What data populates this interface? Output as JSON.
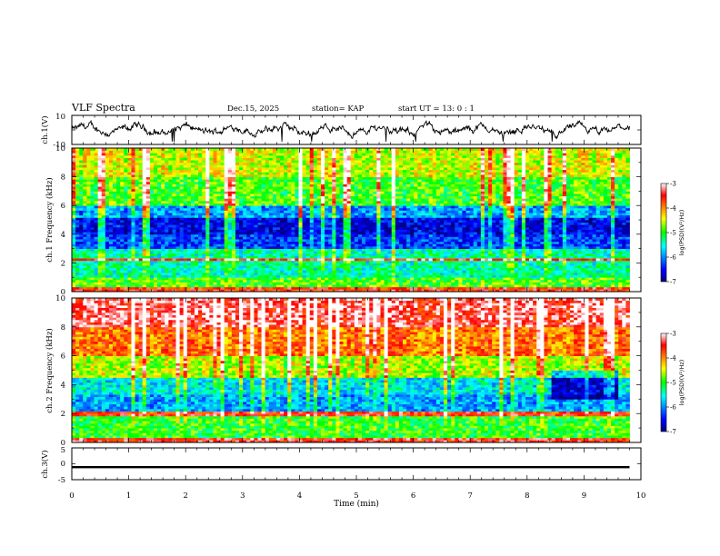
{
  "header": {
    "title": "VLF Spectra",
    "date": "Dec.15, 2025",
    "station": "station= KAP",
    "start_ut": "start  UT =   13: 0  : 1"
  },
  "chart_data": [
    {
      "type": "line",
      "name": "ch1-waveform",
      "ylabel": "ch.1(V)",
      "ylim": [
        -10,
        10
      ],
      "y_tick_labels": [
        "10",
        "-10"
      ],
      "xlim": [
        0,
        10
      ],
      "data_range_x": [
        0,
        9.8
      ],
      "trace_summary": "noisy trace fluctuating roughly between -5 and +5 V",
      "color": "#000000"
    },
    {
      "type": "heatmap",
      "name": "ch1-spectrogram",
      "ylabel": "ch.1 Frequency (kHz)",
      "ylim": [
        0,
        10
      ],
      "y_tick_labels": [
        "0",
        "2",
        "4",
        "6",
        "8",
        "10"
      ],
      "xlim": [
        0,
        10
      ],
      "data_range_x": [
        0,
        9.8
      ],
      "colorbar": {
        "label": "log(PSD)(V²/Hz)",
        "range": [
          -7,
          -3
        ],
        "tick_labels": [
          "-3",
          "-4",
          "-5",
          "-6",
          "-7"
        ]
      },
      "frequency_profile": [
        {
          "f": [
            0,
            0.3
          ],
          "level": -3.6
        },
        {
          "f": [
            0.3,
            1.0
          ],
          "level": -4.9
        },
        {
          "f": [
            1.0,
            2.2
          ],
          "level": -5.4
        },
        {
          "f": [
            2.2,
            2.35
          ],
          "level": -3.4
        },
        {
          "f": [
            2.35,
            3.0
          ],
          "level": -5.4
        },
        {
          "f": [
            3.0,
            4.0
          ],
          "level": -6.3
        },
        {
          "f": [
            4.0,
            5.2
          ],
          "level": -6.6
        },
        {
          "f": [
            5.2,
            6.0
          ],
          "level": -5.9
        },
        {
          "f": [
            6.0,
            8.0
          ],
          "level": -4.9
        },
        {
          "f": [
            8.0,
            10.0
          ],
          "level": -4.5
        }
      ],
      "notes": "vertical red/orange broadband spikes throughout; horizontal narrowband lines near 2.3 and 5.5 kHz"
    },
    {
      "type": "heatmap",
      "name": "ch2-spectrogram",
      "ylabel": "ch.2 Frequency (kHz)",
      "ylim": [
        0,
        10
      ],
      "y_tick_labels": [
        "0",
        "2",
        "4",
        "6",
        "8",
        "10"
      ],
      "xlim": [
        0,
        10
      ],
      "data_range_x": [
        0,
        9.8
      ],
      "colorbar": {
        "label": "log(PSD)(V²/Hz)",
        "range": [
          -7,
          -3
        ],
        "tick_labels": [
          "-3",
          "-4",
          "-5",
          "-6",
          "-7"
        ]
      },
      "frequency_profile": [
        {
          "f": [
            0,
            0.3
          ],
          "level": -3.5
        },
        {
          "f": [
            0.3,
            1.8
          ],
          "level": -5.0
        },
        {
          "f": [
            1.8,
            2.2
          ],
          "level": -3.6
        },
        {
          "f": [
            2.2,
            3.3
          ],
          "level": -5.9
        },
        {
          "f": [
            3.3,
            4.5
          ],
          "level": -5.6
        },
        {
          "f": [
            4.5,
            6.0
          ],
          "level": -4.6
        },
        {
          "f": [
            6.0,
            8.0
          ],
          "level": -3.9
        },
        {
          "f": [
            8.0,
            10.0
          ],
          "level": -3.3
        }
      ],
      "notes": "strong red emission above 6 kHz; blue patch near 8.5-9.5 min at 3-5 kHz"
    },
    {
      "type": "line",
      "name": "ch3-waveform",
      "ylabel": "ch.3(V)",
      "ylim": [
        -5,
        5
      ],
      "y_tick_labels": [
        "5",
        "0",
        "-5"
      ],
      "xlim": [
        0,
        10
      ],
      "data_range_x": [
        0,
        9.8
      ],
      "trace_summary": "thick near-constant band around -1 V",
      "band": [
        -1.4,
        -0.7
      ],
      "color": "#000000"
    }
  ],
  "x_axis": {
    "label": "Time  (min)",
    "tick_labels": [
      "0",
      "1",
      "2",
      "3",
      "4",
      "5",
      "6",
      "7",
      "8",
      "9",
      "10"
    ]
  },
  "colorbar_label": "log(PSD)(V²/Hz)"
}
